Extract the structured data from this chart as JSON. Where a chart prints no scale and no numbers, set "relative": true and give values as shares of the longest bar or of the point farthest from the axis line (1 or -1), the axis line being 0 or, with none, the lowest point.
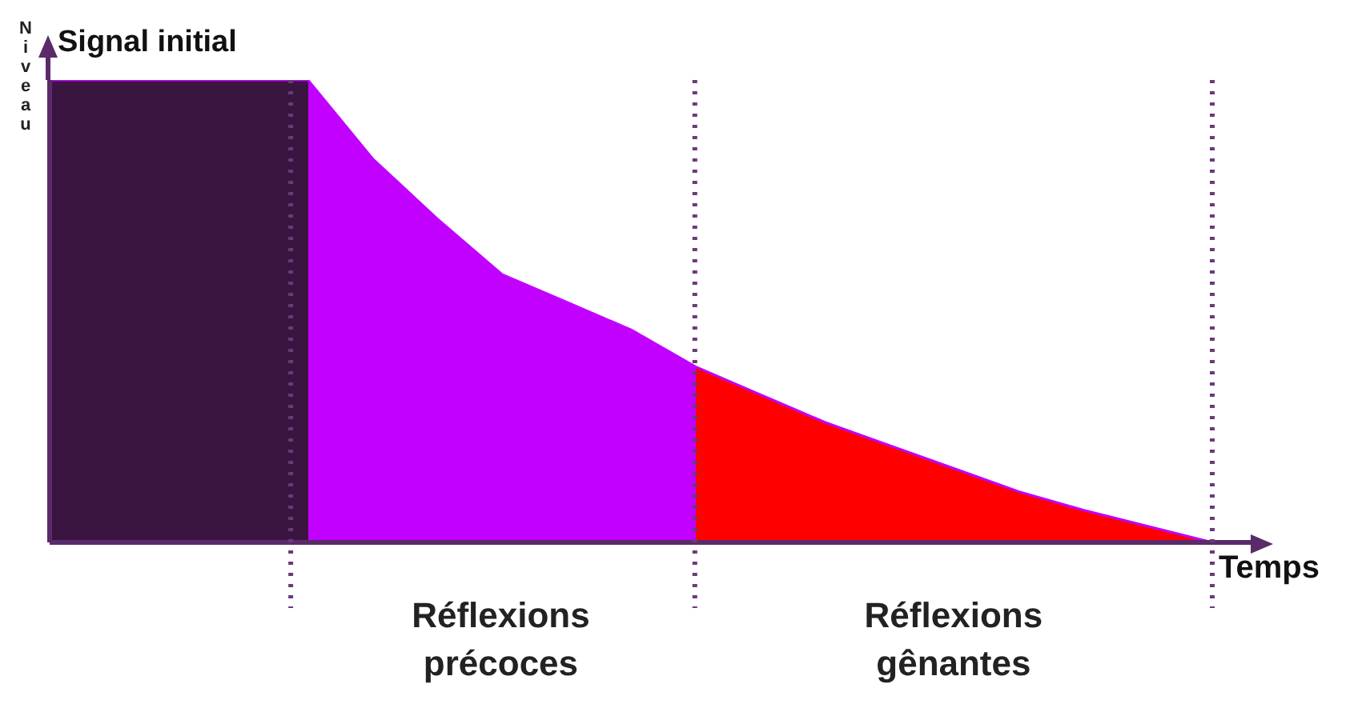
{
  "chart_data": {
    "type": "area",
    "relative": true,
    "xlabel": "Temps",
    "ylabel": "Niveau",
    "categories": [
      null,
      null,
      null,
      null,
      null,
      null,
      null,
      null,
      null,
      null,
      null,
      null,
      null,
      null,
      null,
      null,
      null,
      null,
      null
    ],
    "series": [
      {
        "color": "#c200ff",
        "values": [
          1,
          1,
          1,
          1,
          1,
          0.83,
          0.7,
          0.58,
          0.52,
          0.46,
          0.38,
          0.32,
          0.26,
          0.21,
          0.16,
          0.11,
          0.07,
          0.035,
          0
        ],
        "colors": [
          "#3a1540",
          "#3a1540",
          "#3a1540",
          "#3a1540",
          "#c200ff",
          "#c200ff",
          "#c200ff",
          "#c200ff",
          "#c200ff",
          "#c200ff",
          "#ff0000",
          "#ff0000",
          "#ff0000",
          "#ff0000",
          "#ff0000",
          "#ff0000",
          "#ff0000",
          "#ff0000",
          "#ff0000"
        ]
      }
    ],
    "annotations": [
      "Signal initial",
      "Réflexions précoces",
      "Réflexions gênantes"
    ]
  }
}
